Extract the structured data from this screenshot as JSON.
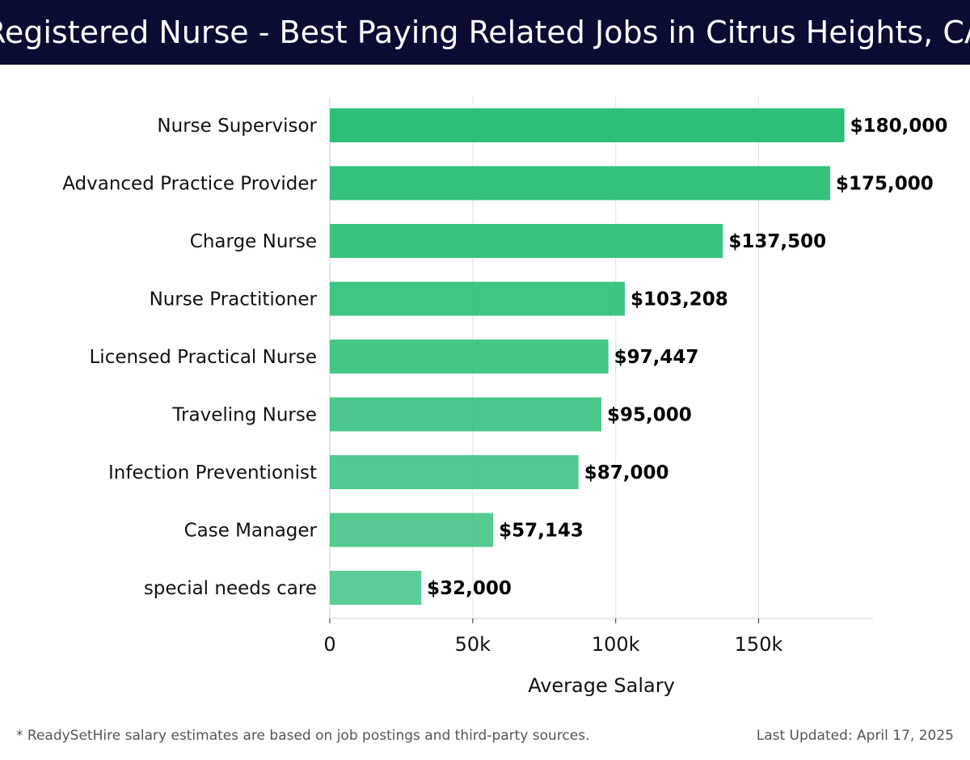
{
  "header": {
    "title": "Registered Nurse - Best Paying Related Jobs in Citrus Heights, CA"
  },
  "chart_data": {
    "type": "bar",
    "orientation": "horizontal",
    "title": "Registered Nurse - Best Paying Related Jobs in Citrus Heights, CA",
    "xlabel": "Average Salary",
    "ylabel": "",
    "xlim": [
      0,
      190000
    ],
    "x_ticks": [
      0,
      50000,
      100000,
      150000
    ],
    "x_tick_labels": [
      "0",
      "50k",
      "100k",
      "150k"
    ],
    "grid": "vertical",
    "categories": [
      "Nurse Supervisor",
      "Advanced Practice Provider",
      "Charge Nurse",
      "Nurse Practitioner",
      "Licensed Practical Nurse",
      "Traveling Nurse",
      "Infection Preventionist",
      "Case Manager",
      "special needs care"
    ],
    "values": [
      180000,
      175000,
      137500,
      103208,
      97447,
      95000,
      87000,
      57143,
      32000
    ],
    "value_labels": [
      "$180,000",
      "$175,000",
      "$137,500",
      "$103,208",
      "$97,447",
      "$95,000",
      "$87,000",
      "$57,143",
      "$32,000"
    ],
    "bar_color": "#2dbf78"
  },
  "footer": {
    "note": "* ReadySetHire salary estimates are based on job postings and third-party sources.",
    "updated": "Last Updated: April 17, 2025"
  }
}
